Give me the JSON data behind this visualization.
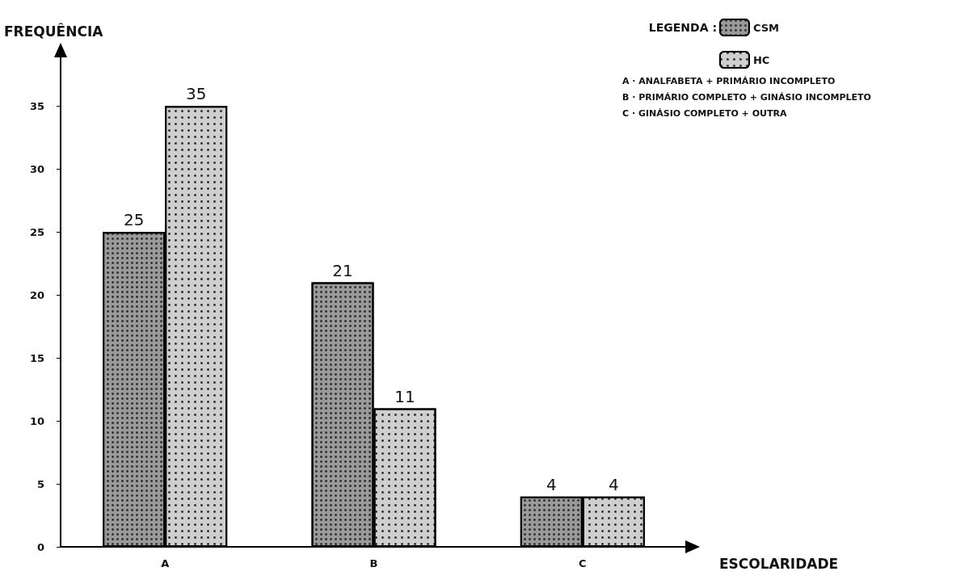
{
  "chart_data": {
    "type": "bar",
    "xlabel": "ESCOLARIDADE",
    "ylabel": "FREQUÊNCIA",
    "categories": [
      "A",
      "B",
      "C"
    ],
    "series": [
      {
        "name": "CSM",
        "color": "#9a9a9a",
        "values": [
          25,
          21,
          4
        ]
      },
      {
        "name": "HC",
        "color": "#cfcfcf",
        "values": [
          35,
          11,
          4
        ]
      }
    ],
    "ylim": [
      0,
      39
    ],
    "yticks": [
      0,
      5,
      10,
      15,
      20,
      25,
      30,
      35
    ],
    "grid": false,
    "data_labels": true,
    "legend": "top right",
    "legend_title": "LEGENDA :",
    "annotations": [
      "A · ANALFABETA + PRIMÁRIO INCOMPLETO",
      "B · PRIMÁRIO COMPLETO + GINÁSIO INCOMPLETO",
      "C · GINÁSIO COMPLETO + OUTRA"
    ]
  }
}
